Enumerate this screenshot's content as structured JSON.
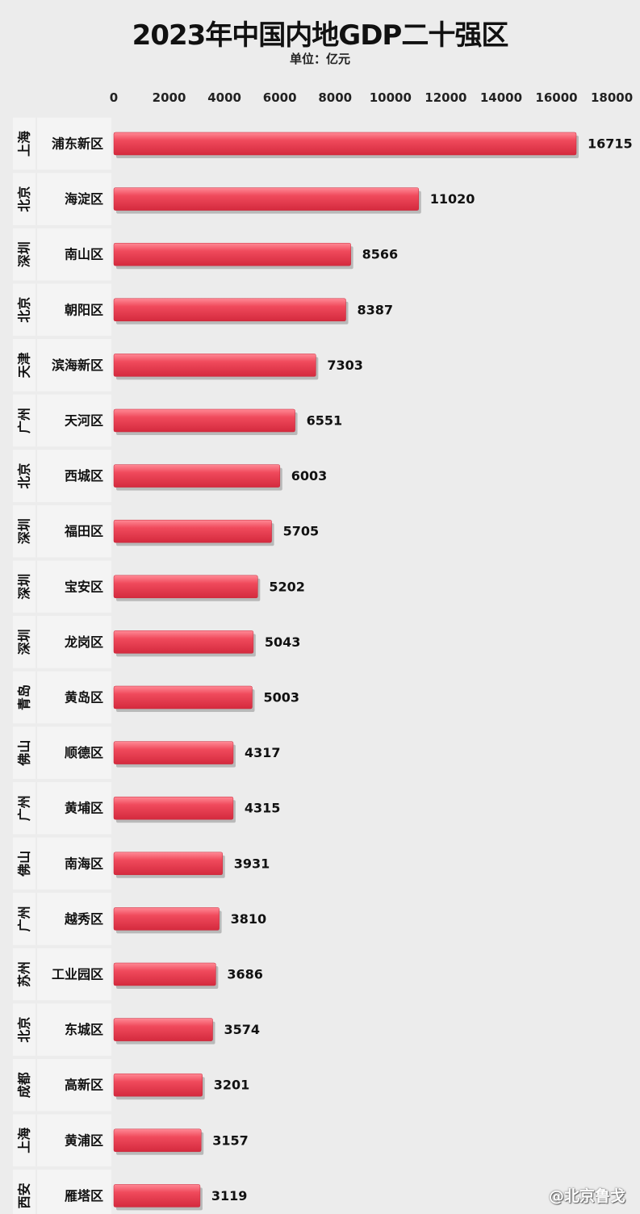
{
  "watermark": "@北京鲁戈",
  "colors": {
    "bar": "#e8364a",
    "bar_highlight": "#ff8a96",
    "bar_shadow": "#b9b9b9"
  },
  "chart_data": {
    "type": "bar",
    "orientation": "horizontal",
    "title": "2023年中国内地GDP二十强区",
    "subtitle": "单位：亿元",
    "xlim": [
      0,
      18000
    ],
    "xticks": [
      0,
      2000,
      4000,
      6000,
      8000,
      10000,
      12000,
      14000,
      16000,
      18000
    ],
    "rows": [
      {
        "city": "上海",
        "district": "浦东新区",
        "value": 16715
      },
      {
        "city": "北京",
        "district": "海淀区",
        "value": 11020
      },
      {
        "city": "深圳",
        "district": "南山区",
        "value": 8566
      },
      {
        "city": "北京",
        "district": "朝阳区",
        "value": 8387
      },
      {
        "city": "天津",
        "district": "滨海新区",
        "value": 7303
      },
      {
        "city": "广州",
        "district": "天河区",
        "value": 6551
      },
      {
        "city": "北京",
        "district": "西城区",
        "value": 6003
      },
      {
        "city": "深圳",
        "district": "福田区",
        "value": 5705
      },
      {
        "city": "深圳",
        "district": "宝安区",
        "value": 5202
      },
      {
        "city": "深圳",
        "district": "龙岗区",
        "value": 5043
      },
      {
        "city": "青岛",
        "district": "黄岛区",
        "value": 5003
      },
      {
        "city": "佛山",
        "district": "顺德区",
        "value": 4317
      },
      {
        "city": "广州",
        "district": "黄埔区",
        "value": 4315
      },
      {
        "city": "佛山",
        "district": "南海区",
        "value": 3931
      },
      {
        "city": "广州",
        "district": "越秀区",
        "value": 3810
      },
      {
        "city": "苏州",
        "district": "工业园区",
        "value": 3686
      },
      {
        "city": "北京",
        "district": "东城区",
        "value": 3574
      },
      {
        "city": "成都",
        "district": "高新区",
        "value": 3201
      },
      {
        "city": "上海",
        "district": "黄浦区",
        "value": 3157
      },
      {
        "city": "西安",
        "district": "雁塔区",
        "value": 3119
      }
    ]
  }
}
